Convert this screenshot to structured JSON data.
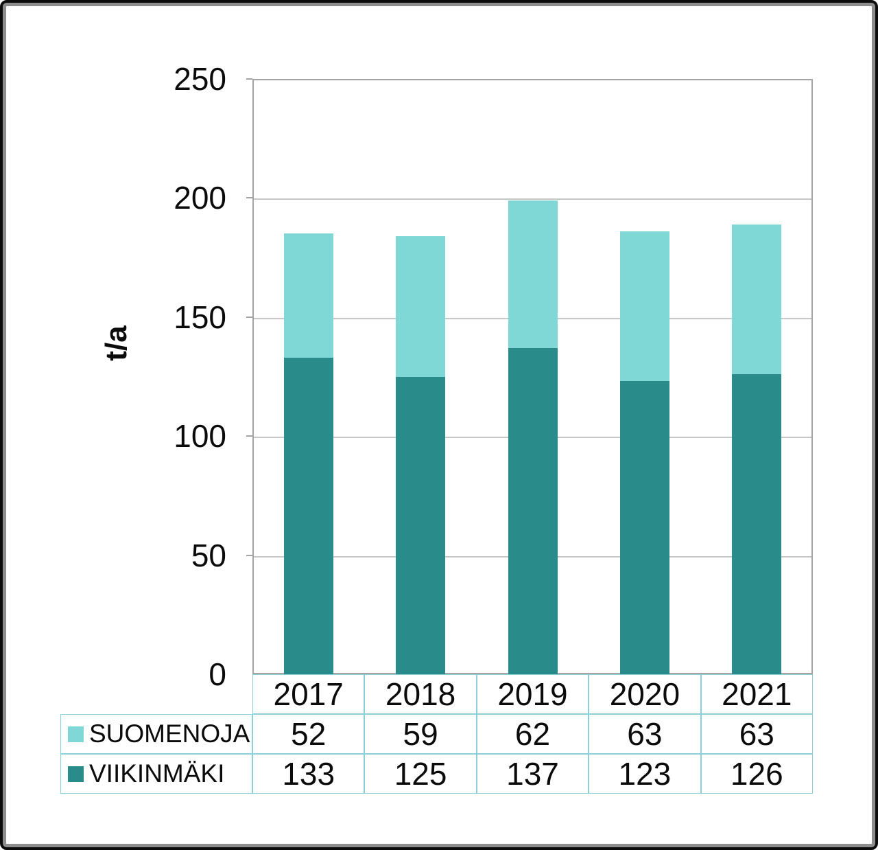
{
  "chart_data": {
    "type": "bar",
    "stacked": true,
    "title": "",
    "ylabel": "t/a",
    "categories": [
      "2017",
      "2018",
      "2019",
      "2020",
      "2021"
    ],
    "series": [
      {
        "name": "SUOMENOJA",
        "values": [
          52,
          59,
          62,
          63,
          63
        ],
        "color": "#80d8d6"
      },
      {
        "name": "VIIKINMÄKI",
        "values": [
          133,
          125,
          137,
          123,
          126
        ],
        "color": "#2a8c8a"
      }
    ],
    "stack_order_bottom_to_top": [
      "VIIKINMÄKI",
      "SUOMENOJA"
    ],
    "ylim": [
      0,
      250
    ],
    "ytick_step": 50,
    "grid": true,
    "legend_position": "table-below-left"
  },
  "colors": {
    "suomenoja": "#80d8d6",
    "viikinmaki": "#2a8c8a",
    "gridline": "#c7c7c7",
    "plot_border": "#a4a4a4",
    "table_border": "#8cceda",
    "text": "#0b0b0b"
  }
}
